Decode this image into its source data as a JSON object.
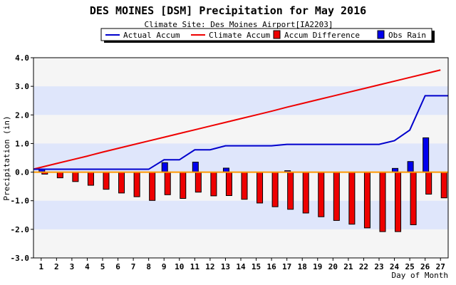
{
  "chart_data": {
    "type": "bar",
    "title": "DES MOINES [DSM] Precipitation for May 2016",
    "subtitle": "Climate Site: Des Moines Airport[IA2203]",
    "ylabel": "Precipitation (in)",
    "xlabel": "Day of Month",
    "ylim": [
      -3.0,
      4.0
    ],
    "yticks": [
      "-3.0",
      "-2.0",
      "-1.0",
      "0.0",
      "1.0",
      "2.0",
      "3.0",
      "4.0"
    ],
    "yticks_values": [
      -3,
      -2,
      -1,
      0,
      1,
      2,
      3,
      4
    ],
    "categories": [
      "1",
      "2",
      "3",
      "4",
      "5",
      "6",
      "7",
      "8",
      "9",
      "10",
      "11",
      "12",
      "13",
      "14",
      "15",
      "16",
      "17",
      "18",
      "19",
      "20",
      "21",
      "22",
      "23",
      "24",
      "25",
      "26",
      "27"
    ],
    "legend": {
      "placement": "top",
      "entries": [
        {
          "label": "Actual Accum",
          "color": "#0000cc",
          "kind": "line"
        },
        {
          "label": "Climate Accum",
          "color": "#ee0000",
          "kind": "line"
        },
        {
          "label": "Accum Difference",
          "color": "#ee0000",
          "kind": "box"
        },
        {
          "label": "Obs Rain",
          "color": "#0000ee",
          "kind": "box"
        }
      ]
    },
    "series": [
      {
        "name": "Actual Accum",
        "type": "line",
        "color": "#0000cc",
        "values": [
          0.1,
          0.1,
          0.1,
          0.1,
          0.1,
          0.1,
          0.1,
          0.1,
          0.43,
          0.43,
          0.78,
          0.78,
          0.92,
          0.92,
          0.92,
          0.92,
          0.97,
          0.97,
          0.97,
          0.97,
          0.97,
          0.97,
          0.97,
          1.1,
          1.47,
          2.67,
          2.67
        ],
        "end_value": 2.67
      },
      {
        "name": "Climate Accum",
        "type": "line",
        "color": "#ee0000",
        "values": [
          0.17,
          0.3,
          0.43,
          0.56,
          0.7,
          0.83,
          0.96,
          1.09,
          1.22,
          1.35,
          1.48,
          1.61,
          1.74,
          1.87,
          2.0,
          2.13,
          2.27,
          2.4,
          2.53,
          2.66,
          2.79,
          2.92,
          3.05,
          3.18,
          3.31,
          3.44,
          3.57
        ]
      },
      {
        "name": "Accum Difference",
        "type": "bar",
        "color": "#ee0000",
        "values": [
          -0.07,
          -0.2,
          -0.33,
          -0.46,
          -0.6,
          -0.73,
          -0.86,
          -0.99,
          -0.79,
          -0.92,
          -0.7,
          -0.83,
          -0.82,
          -0.95,
          -1.08,
          -1.21,
          -1.3,
          -1.43,
          -1.56,
          -1.69,
          -1.82,
          -1.95,
          -2.08,
          -2.08,
          -1.84,
          -0.77,
          -0.9
        ]
      },
      {
        "name": "Obs Rain",
        "type": "bar",
        "color": "#0000ee",
        "values": [
          0.1,
          0,
          0,
          0,
          0,
          0,
          0,
          0,
          0.33,
          0,
          0.35,
          0,
          0.14,
          0,
          0,
          0,
          0.05,
          0,
          0,
          0,
          0,
          0,
          0,
          0.13,
          0.37,
          1.2,
          0
        ]
      }
    ],
    "grid": true,
    "colors": {
      "band_light": "#f5f5f5",
      "band_blue": "#dfe6fb",
      "zero_line": "#ff9900",
      "title_bar": "#ffffff"
    }
  }
}
